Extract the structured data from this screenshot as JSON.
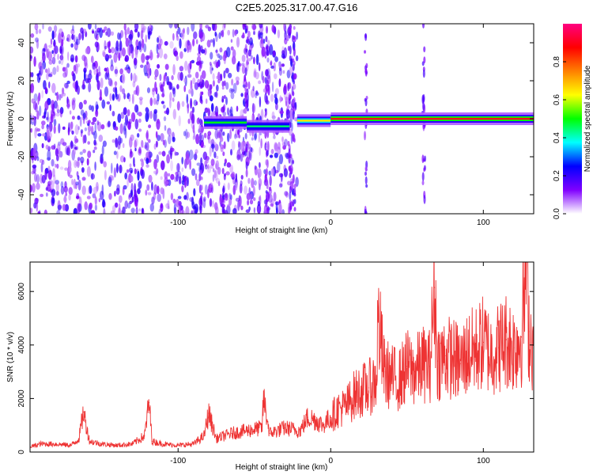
{
  "title": "C2E5.2025.317.00.47.G16",
  "chart_data": [
    {
      "type": "heatmap",
      "xlabel": "Height of straight line (km)",
      "ylabel": "Frequency (Hz)",
      "xlim": [
        -197,
        133
      ],
      "ylim": [
        -50,
        50
      ],
      "xticks": [
        -100,
        0,
        100
      ],
      "xtick_labels": [
        "-100",
        "0",
        "100"
      ],
      "yticks": [
        -40,
        -20,
        0,
        20,
        40
      ],
      "ytick_labels": [
        "-40",
        "-20",
        "0",
        "20",
        "40"
      ],
      "colorbar": {
        "label": "Normalized spectral amplitude",
        "range": [
          0,
          1
        ],
        "ticks": [
          0.0,
          0.2,
          0.4,
          0.6,
          0.8
        ],
        "tick_labels": [
          "0.0",
          "0.2",
          "0.4",
          "0.6",
          "0.8"
        ],
        "colors": [
          "#ffffff",
          "#8000ff",
          "#0000ff",
          "#00ffff",
          "#00ff00",
          "#ffff00",
          "#ff8000",
          "#ff0000",
          "#ff0080"
        ]
      },
      "signal": {
        "frequency_hz": 0,
        "visible_from_x": -83,
        "segments": [
          {
            "x": [
              -83,
              -55
            ],
            "y_center": -2,
            "amplitude": 0.5
          },
          {
            "x": [
              -55,
              -27
            ],
            "y_center": -4,
            "amplitude": 0.45
          },
          {
            "x": [
              -22,
              0
            ],
            "y_center": -1,
            "amplitude": 0.65
          },
          {
            "x": [
              0,
              133
            ],
            "y_center": 0,
            "amplitude": 0.9
          }
        ]
      },
      "noise_region": {
        "x": [
          -197,
          -22
        ],
        "amplitude": 0.15
      },
      "vertical_streaks": [
        -85,
        -70,
        -55,
        -42,
        -27,
        -24,
        23,
        61
      ]
    },
    {
      "type": "line",
      "xlabel": "Height of straight line (km)",
      "ylabel": "SNR (10 * v/v)",
      "xlim": [
        -197,
        133
      ],
      "ylim": [
        0,
        7100
      ],
      "xticks": [
        -100,
        0,
        100
      ],
      "xtick_labels": [
        "-100",
        "0",
        "100"
      ],
      "yticks": [
        0,
        2000,
        4000,
        6000
      ],
      "ytick_labels": [
        "0",
        "2000",
        "4000",
        "6000"
      ],
      "color": "#ee3333",
      "x": [
        -197,
        -190,
        -180,
        -170,
        -165,
        -162,
        -158,
        -150,
        -140,
        -130,
        -122,
        -119,
        -117,
        -110,
        -100,
        -90,
        -83,
        -80,
        -75,
        -65,
        -55,
        -45,
        -44,
        -40,
        -30,
        -20,
        -15,
        -10,
        -5,
        0,
        5,
        10,
        15,
        20,
        25,
        30,
        31,
        35,
        40,
        45,
        50,
        55,
        60,
        65,
        68,
        70,
        75,
        80,
        85,
        90,
        95,
        100,
        105,
        110,
        115,
        120,
        125,
        128,
        130,
        133
      ],
      "values": [
        200,
        300,
        300,
        250,
        500,
        1500,
        400,
        300,
        250,
        300,
        600,
        1850,
        400,
        300,
        250,
        300,
        600,
        1450,
        500,
        700,
        800,
        900,
        2000,
        700,
        900,
        800,
        1300,
        1200,
        1000,
        1300,
        1600,
        1700,
        2100,
        2300,
        2400,
        2700,
        5000,
        3000,
        2800,
        2700,
        3200,
        3000,
        3300,
        3200,
        6150,
        3400,
        3600,
        3500,
        3300,
        3700,
        3800,
        4100,
        3700,
        3900,
        4200,
        3900,
        4300,
        7000,
        4500,
        3900
      ]
    }
  ]
}
